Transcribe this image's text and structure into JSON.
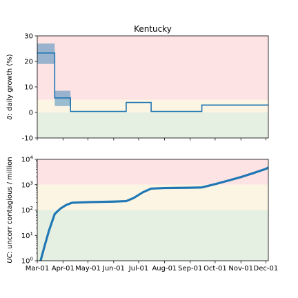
{
  "chart_data": [
    {
      "type": "line",
      "title": "Kentucky",
      "ylabel_prefix": "δ",
      "ylabel_rest": ": daily growth (%)",
      "ylim": [
        -10,
        30
      ],
      "yticks": [
        -10,
        0,
        10,
        20,
        30
      ],
      "xlim": [
        "2020-03-01",
        "2020-12-04"
      ],
      "zones": [
        {
          "from": 5,
          "to": 30,
          "color": "#fde3e3"
        },
        {
          "from": 0,
          "to": 5,
          "color": "#fdf5e3"
        },
        {
          "from": -10,
          "to": 0,
          "color": "#e5f0e2"
        }
      ],
      "uncertainty_bands": [
        {
          "x_start": "2020-03-01",
          "x_end": "2020-03-22",
          "low": 19,
          "high": 27
        },
        {
          "x_start": "2020-03-22",
          "x_end": "2020-04-10",
          "low": 2.5,
          "high": 8.5
        }
      ],
      "series": [
        {
          "step": true,
          "color": "#1f77b4",
          "x": [
            "2020-03-01",
            "2020-03-22",
            "2020-04-10",
            "2020-06-16",
            "2020-07-16",
            "2020-09-15",
            "2020-12-04"
          ],
          "y": [
            23.3,
            5.7,
            0.4,
            3.9,
            0.4,
            2.9,
            2.9
          ]
        }
      ],
      "grid": false
    },
    {
      "type": "line",
      "ylabel_prefix": "UC",
      "ylabel_rest": ": uncorr contagious / million",
      "yscale": "log",
      "ylim": [
        1,
        10000
      ],
      "yticks": [
        {
          "value": 1,
          "base": "10",
          "exp": "0"
        },
        {
          "value": 10,
          "base": "10",
          "exp": "1"
        },
        {
          "value": 100,
          "base": "10",
          "exp": "2"
        },
        {
          "value": 1000,
          "base": "10",
          "exp": "3"
        },
        {
          "value": 10000,
          "base": "10",
          "exp": "4"
        }
      ],
      "xlim": [
        "2020-03-01",
        "2020-12-04"
      ],
      "zones": [
        {
          "from": 1000,
          "to": 10000,
          "color": "#fde3e3"
        },
        {
          "from": 100,
          "to": 1000,
          "color": "#fdf5e3"
        },
        {
          "from": 1,
          "to": 100,
          "color": "#e5f0e2"
        }
      ],
      "series": [
        {
          "color": "#1f77b4",
          "x": [
            "2020-03-05",
            "2020-03-10",
            "2020-03-15",
            "2020-03-22",
            "2020-03-29",
            "2020-04-05",
            "2020-04-12",
            "2020-05-01",
            "2020-06-01",
            "2020-06-16",
            "2020-06-25",
            "2020-07-06",
            "2020-07-16",
            "2020-08-01",
            "2020-09-01",
            "2020-09-15",
            "2020-10-01",
            "2020-10-15",
            "2020-11-01",
            "2020-11-15",
            "2020-12-01",
            "2020-12-04"
          ],
          "y": [
            1,
            4,
            15,
            70,
            115,
            160,
            195,
            205,
            215,
            225,
            300,
            500,
            700,
            740,
            760,
            780,
            1050,
            1400,
            2000,
            2800,
            4200,
            4800
          ]
        }
      ],
      "xticks": [
        "Mar-01",
        "Apr-01",
        "May-01",
        "Jun-01",
        "Jul-01",
        "Aug-01",
        "Sep-01",
        "Oct-01",
        "Nov-01",
        "Dec-01"
      ],
      "xtick_dates": [
        "2020-03-01",
        "2020-04-01",
        "2020-05-01",
        "2020-06-01",
        "2020-07-01",
        "2020-08-01",
        "2020-09-01",
        "2020-10-01",
        "2020-11-01",
        "2020-12-01"
      ],
      "grid": false
    }
  ]
}
